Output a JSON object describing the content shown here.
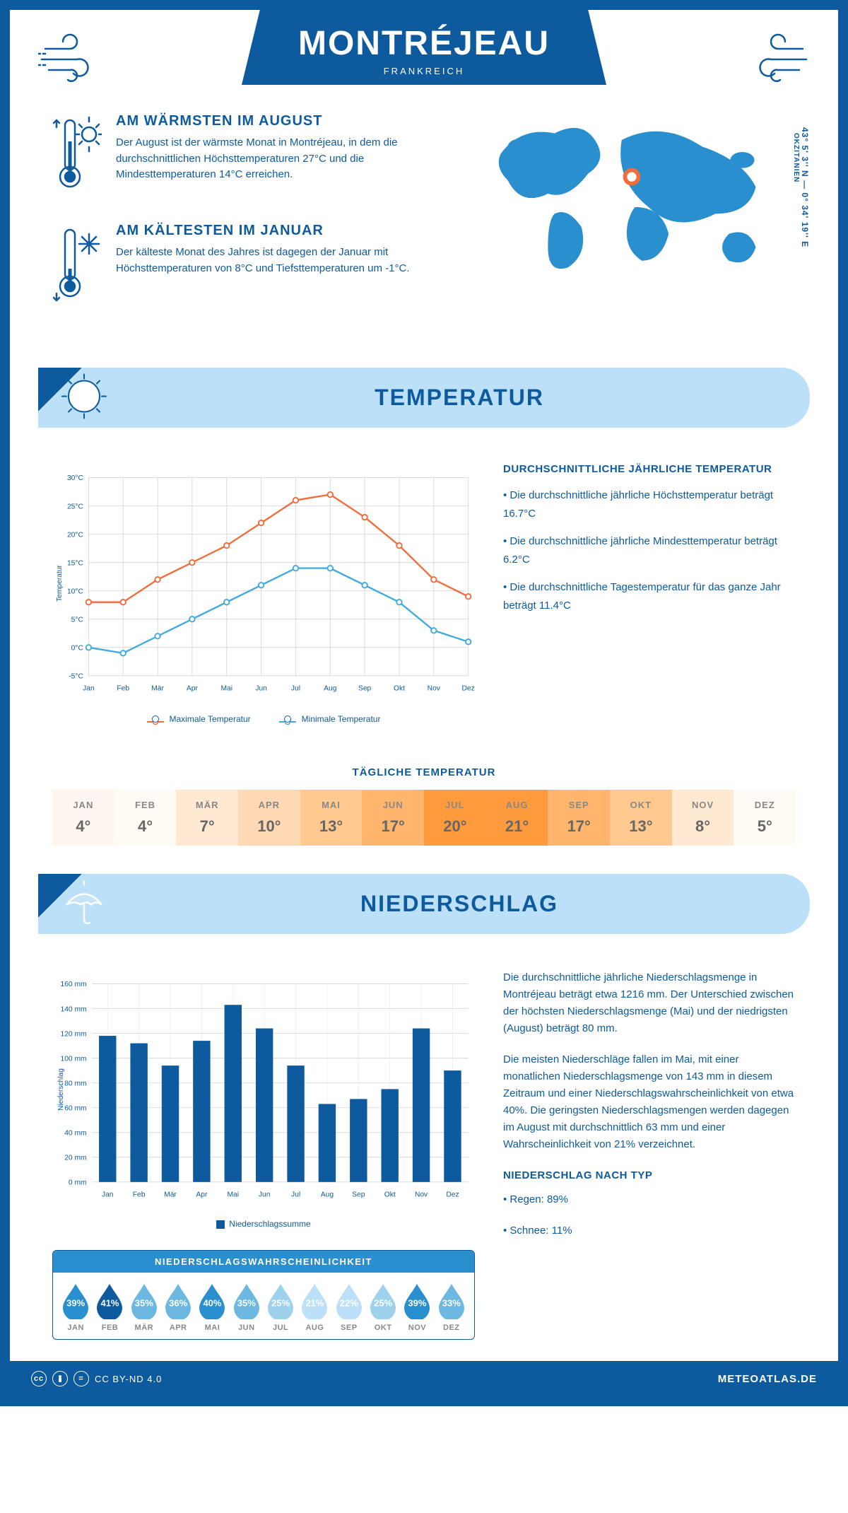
{
  "colors": {
    "primary": "#0d5a9e",
    "lightblue": "#bce0f7",
    "orange": "#f26b3a",
    "skyblue": "#3fa9e0",
    "grid": "#d0d0d0",
    "text_muted": "#888"
  },
  "header": {
    "title": "MONTRÉJEAU",
    "subtitle": "FRANKREICH"
  },
  "facts": {
    "warm": {
      "title": "AM WÄRMSTEN IM AUGUST",
      "text": "Der August ist der wärmste Monat in Montréjeau, in dem die durchschnittlichen Höchsttemperaturen 27°C und die Mindesttemperaturen 14°C erreichen."
    },
    "cold": {
      "title": "AM KÄLTESTEN IM JANUAR",
      "text": "Der kälteste Monat des Jahres ist dagegen der Januar mit Höchsttemperaturen von 8°C und Tiefsttemperaturen um -1°C."
    }
  },
  "coords": {
    "lat": "43° 5' 3'' N",
    "lon": "0° 34' 19'' E",
    "region": "OKZITANIEN"
  },
  "temp_section": {
    "title": "TEMPERATUR"
  },
  "temp_stats": {
    "heading": "DURCHSCHNITTLICHE JÄHRLICHE TEMPERATUR",
    "lines": [
      "• Die durchschnittliche jährliche Höchsttemperatur beträgt 16.7°C",
      "• Die durchschnittliche jährliche Mindesttemperatur beträgt 6.2°C",
      "• Die durchschnittliche Tagestemperatur für das ganze Jahr beträgt 11.4°C"
    ]
  },
  "months": [
    "Jan",
    "Feb",
    "Mär",
    "Apr",
    "Mai",
    "Jun",
    "Jul",
    "Aug",
    "Sep",
    "Okt",
    "Nov",
    "Dez"
  ],
  "months_upper": [
    "JAN",
    "FEB",
    "MÄR",
    "APR",
    "MAI",
    "JUN",
    "JUL",
    "AUG",
    "SEP",
    "OKT",
    "NOV",
    "DEZ"
  ],
  "temp_chart": {
    "type": "line",
    "ylabel": "Temperatur",
    "ylim": [
      -5,
      30
    ],
    "ytick_step": 5,
    "y_unit": "°C",
    "grid_color": "#d8d8d8",
    "series": [
      {
        "name": "Maximale Temperatur",
        "color": "#f26b3a",
        "values": [
          8,
          8,
          12,
          15,
          18,
          22,
          26,
          27,
          23,
          18,
          12,
          9
        ]
      },
      {
        "name": "Minimale Temperatur",
        "color": "#3fa9e0",
        "values": [
          0,
          -1,
          2,
          5,
          8,
          11,
          14,
          14,
          11,
          8,
          3,
          1
        ]
      }
    ]
  },
  "daily_temp": {
    "title": "TÄGLICHE TEMPERATUR",
    "values": [
      "4°",
      "4°",
      "7°",
      "10°",
      "13°",
      "17°",
      "20°",
      "21°",
      "17°",
      "13°",
      "8°",
      "5°"
    ],
    "cell_colors": [
      "#fff7ef",
      "#fffaf4",
      "#ffe9d3",
      "#ffd9b3",
      "#ffc98f",
      "#ffb56b",
      "#ff9a3d",
      "#ff9a3d",
      "#ffb56b",
      "#ffc98f",
      "#ffe9d3",
      "#fffaf4"
    ]
  },
  "precip_section": {
    "title": "NIEDERSCHLAG"
  },
  "precip_chart": {
    "type": "bar",
    "ylabel": "Niederschlag",
    "ylim": [
      0,
      160
    ],
    "ytick_step": 20,
    "y_unit": " mm",
    "bar_color": "#0d5a9e",
    "values": [
      118,
      112,
      94,
      114,
      143,
      124,
      94,
      63,
      67,
      75,
      124,
      90
    ],
    "legend": "Niederschlagssumme"
  },
  "precip_text": {
    "p1": "Die durchschnittliche jährliche Niederschlagsmenge in Montréjeau beträgt etwa 1216 mm. Der Unterschied zwischen der höchsten Niederschlagsmenge (Mai) und der niedrigsten (August) beträgt 80 mm.",
    "p2": "Die meisten Niederschläge fallen im Mai, mit einer monatlichen Niederschlagsmenge von 143 mm in diesem Zeitraum und einer Niederschlagswahrscheinlichkeit von etwa 40%. Die geringsten Niederschlagsmengen werden dagegen im August mit durchschnittlich 63 mm und einer Wahrscheinlichkeit von 21% verzeichnet.",
    "type_heading": "NIEDERSCHLAG NACH TYP",
    "type_lines": [
      "• Regen: 89%",
      "• Schnee: 11%"
    ]
  },
  "prob": {
    "title": "NIEDERSCHLAGSWAHRSCHEINLICHKEIT",
    "values": [
      "39%",
      "41%",
      "35%",
      "36%",
      "40%",
      "35%",
      "25%",
      "21%",
      "22%",
      "25%",
      "39%",
      "33%"
    ],
    "colors": [
      "#2a8fce",
      "#0d5a9e",
      "#6db8e0",
      "#6db8e0",
      "#2a8fce",
      "#6db8e0",
      "#9ed2ec",
      "#bce0f7",
      "#bce0f7",
      "#9ed2ec",
      "#2a8fce",
      "#6db8e0"
    ]
  },
  "footer": {
    "license": "CC BY-ND 4.0",
    "brand": "METEOATLAS.DE"
  }
}
